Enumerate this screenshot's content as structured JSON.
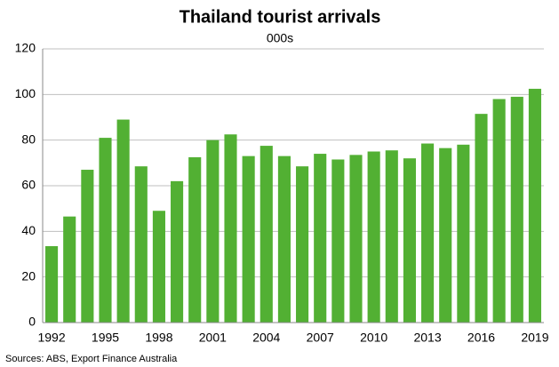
{
  "chart_data": {
    "type": "bar",
    "title": "Thailand tourist arrivals",
    "subtitle": "000s",
    "source": "Sources: ABS, Export Finance Australia",
    "categories": [
      "1992",
      null,
      null,
      "1995",
      null,
      null,
      "1998",
      null,
      null,
      "2001",
      null,
      null,
      "2004",
      null,
      null,
      "2007",
      null,
      null,
      "2010",
      null,
      null,
      "2013",
      null,
      null,
      "2016",
      null,
      null,
      "2019"
    ],
    "values": [
      33.5,
      46.5,
      67,
      81,
      89,
      68.5,
      49,
      62,
      72.5,
      80,
      82.5,
      73,
      77.5,
      73,
      68.5,
      74,
      71.5,
      73.5,
      75,
      75.5,
      72,
      78.5,
      76.5,
      78,
      91.5,
      98,
      99,
      102.5
    ],
    "color": "#52b033",
    "ylim": [
      0,
      120
    ],
    "yticks": [
      0,
      20,
      40,
      60,
      80,
      100,
      120
    ],
    "grid": true
  }
}
